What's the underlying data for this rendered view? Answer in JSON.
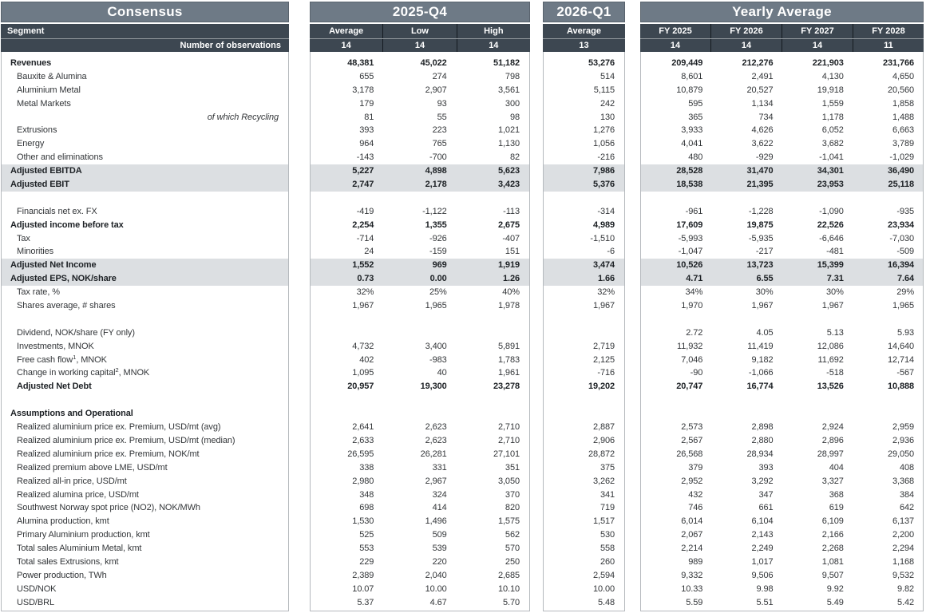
{
  "colors": {
    "title_band": "#6E7A86",
    "dark_band": "#3D4751",
    "highlight_row": "#DCDFE2",
    "panel_border": "#B5B9BD",
    "column_divider": "#141A20"
  },
  "panels": {
    "consensus": {
      "title": "Consensus",
      "segment_label": "Segment",
      "obs_label": "Number of observations"
    },
    "q4": {
      "title": "2025-Q4",
      "columns": [
        "Average",
        "Low",
        "High"
      ],
      "obs": [
        "14",
        "14",
        "14"
      ]
    },
    "q1": {
      "title": "2026-Q1",
      "columns": [
        "Average"
      ],
      "obs": [
        "13"
      ]
    },
    "yearly": {
      "title": "Yearly Average",
      "columns": [
        "FY 2025",
        "FY 2026",
        "FY 2027",
        "FY 2028"
      ],
      "obs": [
        "14",
        "14",
        "14",
        "11"
      ]
    }
  },
  "rows": [
    {
      "label": "Revenues",
      "style": "bold",
      "indent": 0,
      "q4": [
        "48,381",
        "45,022",
        "51,182"
      ],
      "q1": [
        "53,276"
      ],
      "fy": [
        "209,449",
        "212,276",
        "221,903",
        "231,766"
      ]
    },
    {
      "label": "Bauxite & Alumina",
      "style": "normal",
      "indent": 1,
      "q4": [
        "655",
        "274",
        "798"
      ],
      "q1": [
        "514"
      ],
      "fy": [
        "8,601",
        "2,491",
        "4,130",
        "4,650"
      ]
    },
    {
      "label": "Aluminium Metal",
      "style": "normal",
      "indent": 1,
      "q4": [
        "3,178",
        "2,907",
        "3,561"
      ],
      "q1": [
        "5,115"
      ],
      "fy": [
        "10,879",
        "20,527",
        "19,918",
        "20,560"
      ]
    },
    {
      "label": "Metal Markets",
      "style": "normal",
      "indent": 1,
      "q4": [
        "179",
        "93",
        "300"
      ],
      "q1": [
        "242"
      ],
      "fy": [
        "595",
        "1,134",
        "1,559",
        "1,858"
      ]
    },
    {
      "label": "of which Recycling",
      "style": "italic",
      "indent": 1,
      "q4": [
        "81",
        "55",
        "98"
      ],
      "q1": [
        "130"
      ],
      "fy": [
        "365",
        "734",
        "1,178",
        "1,488"
      ]
    },
    {
      "label": "Extrusions",
      "style": "normal",
      "indent": 1,
      "q4": [
        "393",
        "223",
        "1,021"
      ],
      "q1": [
        "1,276"
      ],
      "fy": [
        "3,933",
        "4,626",
        "6,052",
        "6,663"
      ]
    },
    {
      "label": "Energy",
      "style": "normal",
      "indent": 1,
      "q4": [
        "964",
        "765",
        "1,130"
      ],
      "q1": [
        "1,056"
      ],
      "fy": [
        "4,041",
        "3,622",
        "3,682",
        "3,789"
      ]
    },
    {
      "label": "Other and eliminations",
      "style": "normal",
      "indent": 1,
      "q4": [
        "-143",
        "-700",
        "82"
      ],
      "q1": [
        "-216"
      ],
      "fy": [
        "480",
        "-929",
        "-1,041",
        "-1,029"
      ]
    },
    {
      "label": "Adjusted EBITDA",
      "style": "highlight",
      "indent": 0,
      "q4": [
        "5,227",
        "4,898",
        "5,623"
      ],
      "q1": [
        "7,986"
      ],
      "fy": [
        "28,528",
        "31,470",
        "34,301",
        "36,490"
      ]
    },
    {
      "label": "Adjusted EBIT",
      "style": "highlight",
      "indent": 0,
      "q4": [
        "2,747",
        "2,178",
        "3,423"
      ],
      "q1": [
        "5,376"
      ],
      "fy": [
        "18,538",
        "21,395",
        "23,953",
        "25,118"
      ]
    },
    {
      "label": "",
      "style": "blank"
    },
    {
      "label": "Financials net ex. FX",
      "style": "normal",
      "indent": 1,
      "q4": [
        "-419",
        "-1,122",
        "-113"
      ],
      "q1": [
        "-314"
      ],
      "fy": [
        "-961",
        "-1,228",
        "-1,090",
        "-935"
      ]
    },
    {
      "label": "Adjusted income before tax",
      "style": "bold",
      "indent": 0,
      "q4": [
        "2,254",
        "1,355",
        "2,675"
      ],
      "q1": [
        "4,989"
      ],
      "fy": [
        "17,609",
        "19,875",
        "22,526",
        "23,934"
      ]
    },
    {
      "label": "Tax",
      "style": "normal",
      "indent": 1,
      "q4": [
        "-714",
        "-926",
        "-407"
      ],
      "q1": [
        "-1,510"
      ],
      "fy": [
        "-5,993",
        "-5,935",
        "-6,646",
        "-7,030"
      ]
    },
    {
      "label": "Minorities",
      "style": "normal",
      "indent": 1,
      "q4": [
        "24",
        "-159",
        "151"
      ],
      "q1": [
        "-6"
      ],
      "fy": [
        "-1,047",
        "-217",
        "-481",
        "-509"
      ]
    },
    {
      "label": "Adjusted Net Income",
      "style": "highlight",
      "indent": 0,
      "q4": [
        "1,552",
        "969",
        "1,919"
      ],
      "q1": [
        "3,474"
      ],
      "fy": [
        "10,526",
        "13,723",
        "15,399",
        "16,394"
      ]
    },
    {
      "label": "Adjusted EPS, NOK/share",
      "style": "highlight",
      "indent": 0,
      "q4": [
        "0.73",
        "0.00",
        "1.26"
      ],
      "q1": [
        "1.66"
      ],
      "fy": [
        "4.71",
        "6.55",
        "7.31",
        "7.64"
      ]
    },
    {
      "label": "Tax rate, %",
      "style": "normal",
      "indent": 1,
      "q4": [
        "32%",
        "25%",
        "40%"
      ],
      "q1": [
        "32%"
      ],
      "fy": [
        "34%",
        "30%",
        "30%",
        "29%"
      ]
    },
    {
      "label": "Shares average, # shares",
      "style": "normal",
      "indent": 1,
      "q4": [
        "1,967",
        "1,965",
        "1,978"
      ],
      "q1": [
        "1,967"
      ],
      "fy": [
        "1,970",
        "1,967",
        "1,967",
        "1,965"
      ]
    },
    {
      "label": "",
      "style": "blank"
    },
    {
      "label": "Dividend, NOK/share (FY only)",
      "style": "normal",
      "indent": 1,
      "q4": [
        "",
        "",
        ""
      ],
      "q1": [
        ""
      ],
      "fy": [
        "2.72",
        "4.05",
        "5.13",
        "5.93"
      ]
    },
    {
      "label": "Investments, MNOK",
      "style": "normal",
      "indent": 1,
      "q4": [
        "4,732",
        "3,400",
        "5,891"
      ],
      "q1": [
        "2,719"
      ],
      "fy": [
        "11,932",
        "11,419",
        "12,086",
        "14,640"
      ]
    },
    {
      "label": "Free cash flow",
      "sup": "1",
      "rest": ", MNOK",
      "style": "normal",
      "indent": 1,
      "q4": [
        "402",
        "-983",
        "1,783"
      ],
      "q1": [
        "2,125"
      ],
      "fy": [
        "7,046",
        "9,182",
        "11,692",
        "12,714"
      ]
    },
    {
      "label": "Change in working capital",
      "sup": "2",
      "rest": ", MNOK",
      "style": "normal",
      "indent": 1,
      "q4": [
        "1,095",
        "40",
        "1,961"
      ],
      "q1": [
        "-716"
      ],
      "fy": [
        "-90",
        "-1,066",
        "-518",
        "-567"
      ]
    },
    {
      "label": "Adjusted Net Debt",
      "style": "bold",
      "indent": 1,
      "q4": [
        "20,957",
        "19,300",
        "23,278"
      ],
      "q1": [
        "19,202"
      ],
      "fy": [
        "20,747",
        "16,774",
        "13,526",
        "10,888"
      ]
    },
    {
      "label": "",
      "style": "blank"
    },
    {
      "label": "Assumptions and Operational",
      "style": "bold",
      "indent": 0
    },
    {
      "label": "Realized aluminium price ex. Premium, USD/mt (avg)",
      "style": "normal",
      "indent": 1,
      "q4": [
        "2,641",
        "2,623",
        "2,710"
      ],
      "q1": [
        "2,887"
      ],
      "fy": [
        "2,573",
        "2,898",
        "2,924",
        "2,959"
      ]
    },
    {
      "label": "Realized aluminium price ex. Premium, USD/mt (median)",
      "style": "normal",
      "indent": 1,
      "q4": [
        "2,633",
        "2,623",
        "2,710"
      ],
      "q1": [
        "2,906"
      ],
      "fy": [
        "2,567",
        "2,880",
        "2,896",
        "2,936"
      ]
    },
    {
      "label": "Realized aluminium price ex. Premium, NOK/mt",
      "style": "normal",
      "indent": 1,
      "q4": [
        "26,595",
        "26,281",
        "27,101"
      ],
      "q1": [
        "28,872"
      ],
      "fy": [
        "26,568",
        "28,934",
        "28,997",
        "29,050"
      ]
    },
    {
      "label": "Realized premium above LME, USD/mt",
      "style": "normal",
      "indent": 1,
      "q4": [
        "338",
        "331",
        "351"
      ],
      "q1": [
        "375"
      ],
      "fy": [
        "379",
        "393",
        "404",
        "408"
      ]
    },
    {
      "label": "Realized all-in price, USD/mt",
      "style": "normal",
      "indent": 1,
      "q4": [
        "2,980",
        "2,967",
        "3,050"
      ],
      "q1": [
        "3,262"
      ],
      "fy": [
        "2,952",
        "3,292",
        "3,327",
        "3,368"
      ]
    },
    {
      "label": "Realized alumina price, USD/mt",
      "style": "normal",
      "indent": 1,
      "q4": [
        "348",
        "324",
        "370"
      ],
      "q1": [
        "341"
      ],
      "fy": [
        "432",
        "347",
        "368",
        "384"
      ]
    },
    {
      "label": "Southwest Norway spot price (NO2), NOK/MWh",
      "style": "normal",
      "indent": 1,
      "q4": [
        "698",
        "414",
        "820"
      ],
      "q1": [
        "719"
      ],
      "fy": [
        "746",
        "661",
        "619",
        "642"
      ]
    },
    {
      "label": "Alumina production, kmt",
      "style": "normal",
      "indent": 1,
      "q4": [
        "1,530",
        "1,496",
        "1,575"
      ],
      "q1": [
        "1,517"
      ],
      "fy": [
        "6,014",
        "6,104",
        "6,109",
        "6,137"
      ]
    },
    {
      "label": "Primary Aluminium production, kmt",
      "style": "normal",
      "indent": 1,
      "q4": [
        "525",
        "509",
        "562"
      ],
      "q1": [
        "530"
      ],
      "fy": [
        "2,067",
        "2,143",
        "2,166",
        "2,200"
      ]
    },
    {
      "label": "Total sales Aluminium Metal, kmt",
      "style": "normal",
      "indent": 1,
      "q4": [
        "553",
        "539",
        "570"
      ],
      "q1": [
        "558"
      ],
      "fy": [
        "2,214",
        "2,249",
        "2,268",
        "2,294"
      ]
    },
    {
      "label": "Total sales Extrusions, kmt",
      "style": "normal",
      "indent": 1,
      "q4": [
        "229",
        "220",
        "250"
      ],
      "q1": [
        "260"
      ],
      "fy": [
        "989",
        "1,017",
        "1,081",
        "1,168"
      ]
    },
    {
      "label": "Power production, TWh",
      "style": "normal",
      "indent": 1,
      "q4": [
        "2,389",
        "2,040",
        "2,685"
      ],
      "q1": [
        "2,594"
      ],
      "fy": [
        "9,332",
        "9,506",
        "9,507",
        "9,532"
      ]
    },
    {
      "label": "USD/NOK",
      "style": "normal",
      "indent": 1,
      "q4": [
        "10.07",
        "10.00",
        "10.10"
      ],
      "q1": [
        "10.00"
      ],
      "fy": [
        "10.33",
        "9.98",
        "9.92",
        "9.82"
      ]
    },
    {
      "label": "USD/BRL",
      "style": "normal",
      "indent": 1,
      "q4": [
        "5.37",
        "4.67",
        "5.70"
      ],
      "q1": [
        "5.48"
      ],
      "fy": [
        "5.59",
        "5.51",
        "5.49",
        "5.42"
      ]
    }
  ]
}
